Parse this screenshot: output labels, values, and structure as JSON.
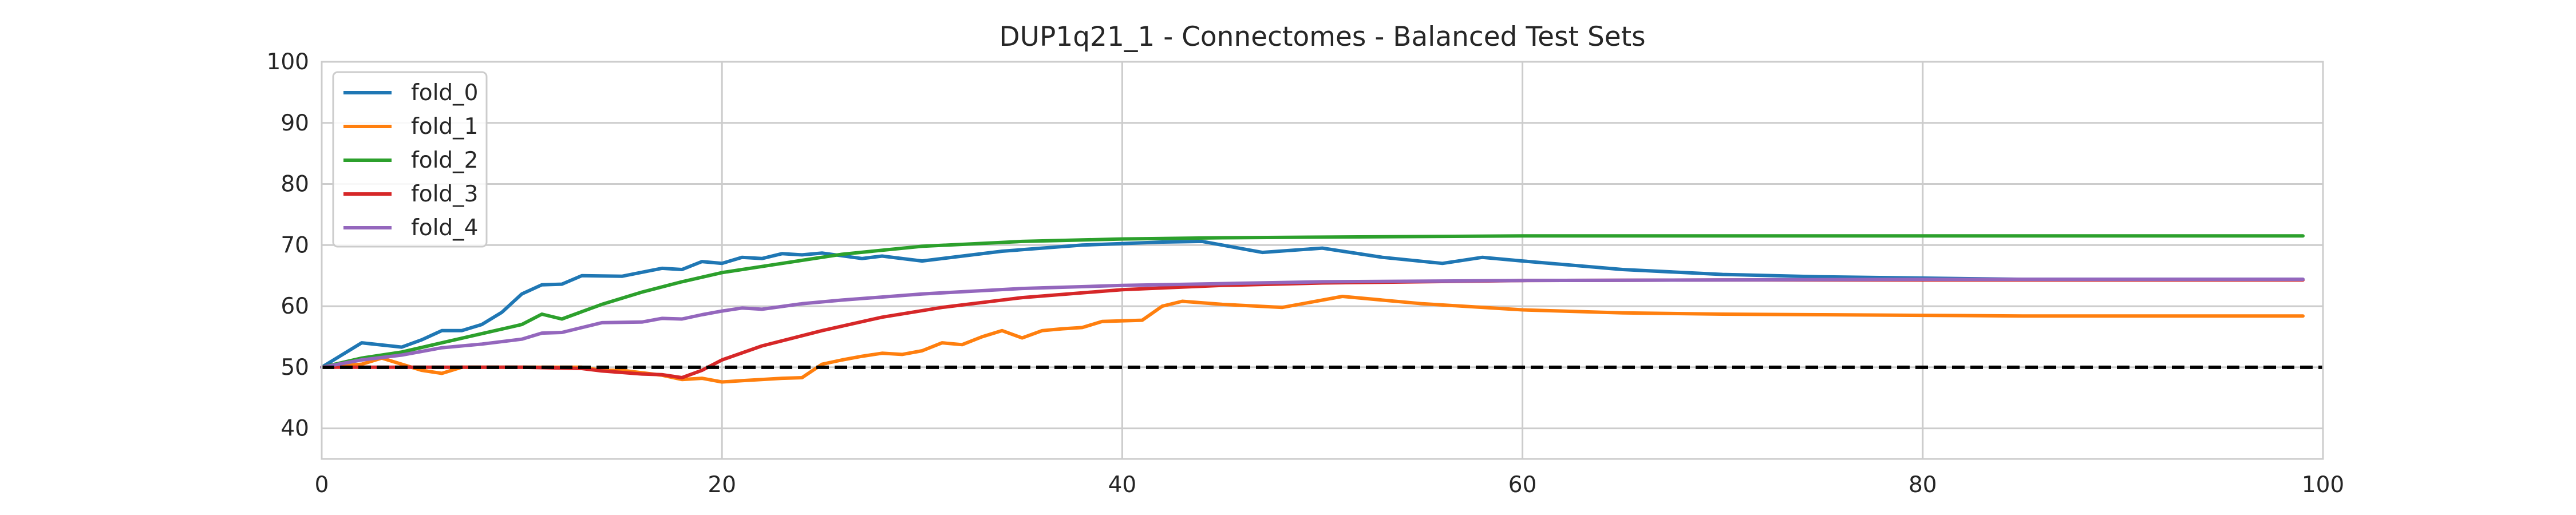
{
  "chart_data": {
    "type": "line",
    "title": "DUP1q21_1 - Connectomes - Balanced Test Sets",
    "xlabel": "",
    "ylabel": "",
    "xlim": [
      0,
      100
    ],
    "ylim": [
      35,
      100
    ],
    "x_ticks": [
      "0",
      "20",
      "40",
      "60",
      "80",
      "100"
    ],
    "y_ticks": [
      "40",
      "50",
      "60",
      "70",
      "80",
      "90",
      "100"
    ],
    "grid": true,
    "legend_position": "upper-left",
    "reference_line": {
      "y": 50,
      "style": "dashed",
      "color": "#000000"
    },
    "series": [
      {
        "name": "fold_0",
        "color": "#1f77b4",
        "points": [
          [
            0,
            50
          ],
          [
            2,
            54
          ],
          [
            4,
            53.3
          ],
          [
            5,
            54.5
          ],
          [
            6,
            56
          ],
          [
            7,
            56
          ],
          [
            8,
            57
          ],
          [
            9,
            59
          ],
          [
            10,
            62
          ],
          [
            11,
            63.5
          ],
          [
            12,
            63.6
          ],
          [
            13,
            65
          ],
          [
            15,
            64.9
          ],
          [
            17,
            66.2
          ],
          [
            18,
            66
          ],
          [
            19,
            67.3
          ],
          [
            20,
            67
          ],
          [
            21,
            68
          ],
          [
            22,
            67.8
          ],
          [
            23,
            68.6
          ],
          [
            24,
            68.4
          ],
          [
            25,
            68.7
          ],
          [
            27,
            67.8
          ],
          [
            28,
            68.2
          ],
          [
            30,
            67.4
          ],
          [
            34,
            69
          ],
          [
            38,
            70
          ],
          [
            42,
            70.5
          ],
          [
            44,
            70.6
          ],
          [
            47,
            68.8
          ],
          [
            50,
            69.5
          ],
          [
            53,
            68
          ],
          [
            56,
            67
          ],
          [
            58,
            68
          ],
          [
            60,
            67.4
          ],
          [
            65,
            66
          ],
          [
            70,
            65.2
          ],
          [
            75,
            64.8
          ],
          [
            80,
            64.6
          ],
          [
            85,
            64.4
          ],
          [
            90,
            64.4
          ],
          [
            95,
            64.4
          ],
          [
            99,
            64.4
          ]
        ]
      },
      {
        "name": "fold_1",
        "color": "#ff7f0e",
        "points": [
          [
            0,
            50
          ],
          [
            2,
            50.5
          ],
          [
            3,
            51.5
          ],
          [
            4,
            50.5
          ],
          [
            5,
            49.5
          ],
          [
            6,
            49
          ],
          [
            7,
            50
          ],
          [
            10,
            50
          ],
          [
            13,
            50
          ],
          [
            14,
            49.5
          ],
          [
            15,
            49.5
          ],
          [
            17,
            48.7
          ],
          [
            18,
            48
          ],
          [
            19,
            48.2
          ],
          [
            20,
            47.6
          ],
          [
            21,
            47.8
          ],
          [
            23,
            48.2
          ],
          [
            24,
            48.3
          ],
          [
            25,
            50.5
          ],
          [
            26,
            51.2
          ],
          [
            27,
            51.8
          ],
          [
            28,
            52.3
          ],
          [
            29,
            52.1
          ],
          [
            30,
            52.7
          ],
          [
            31,
            54
          ],
          [
            32,
            53.7
          ],
          [
            33,
            55
          ],
          [
            34,
            56
          ],
          [
            35,
            54.8
          ],
          [
            36,
            56
          ],
          [
            37,
            56.3
          ],
          [
            38,
            56.5
          ],
          [
            39,
            57.5
          ],
          [
            41,
            57.7
          ],
          [
            42,
            60
          ],
          [
            43,
            60.8
          ],
          [
            45,
            60.3
          ],
          [
            48,
            59.8
          ],
          [
            51,
            61.6
          ],
          [
            55,
            60.4
          ],
          [
            60,
            59.4
          ],
          [
            65,
            58.9
          ],
          [
            70,
            58.7
          ],
          [
            75,
            58.6
          ],
          [
            80,
            58.5
          ],
          [
            85,
            58.4
          ],
          [
            90,
            58.4
          ],
          [
            95,
            58.4
          ],
          [
            99,
            58.4
          ]
        ]
      },
      {
        "name": "fold_2",
        "color": "#2ca02c",
        "points": [
          [
            0,
            50
          ],
          [
            2,
            51.5
          ],
          [
            4,
            52.5
          ],
          [
            6,
            54
          ],
          [
            8,
            55.5
          ],
          [
            10,
            57
          ],
          [
            11,
            58.7
          ],
          [
            12,
            57.9
          ],
          [
            14,
            60.3
          ],
          [
            16,
            62.3
          ],
          [
            18,
            64
          ],
          [
            20,
            65.5
          ],
          [
            23,
            67
          ],
          [
            26,
            68.5
          ],
          [
            30,
            69.8
          ],
          [
            35,
            70.6
          ],
          [
            40,
            71
          ],
          [
            45,
            71.2
          ],
          [
            50,
            71.3
          ],
          [
            60,
            71.5
          ],
          [
            70,
            71.5
          ],
          [
            80,
            71.5
          ],
          [
            90,
            71.5
          ],
          [
            99,
            71.5
          ]
        ]
      },
      {
        "name": "fold_3",
        "color": "#d62728",
        "points": [
          [
            0,
            50
          ],
          [
            5,
            50
          ],
          [
            10,
            50
          ],
          [
            13,
            49.8
          ],
          [
            14,
            49.4
          ],
          [
            16,
            48.9
          ],
          [
            17,
            48.8
          ],
          [
            18,
            48.3
          ],
          [
            19,
            49.5
          ],
          [
            20,
            51.2
          ],
          [
            22,
            53.5
          ],
          [
            25,
            56
          ],
          [
            28,
            58.2
          ],
          [
            31,
            59.8
          ],
          [
            35,
            61.4
          ],
          [
            40,
            62.7
          ],
          [
            45,
            63.4
          ],
          [
            50,
            63.8
          ],
          [
            55,
            64
          ],
          [
            60,
            64.2
          ],
          [
            70,
            64.3
          ],
          [
            80,
            64.3
          ],
          [
            90,
            64.3
          ],
          [
            99,
            64.3
          ]
        ]
      },
      {
        "name": "fold_4",
        "color": "#9467bd",
        "points": [
          [
            0,
            50
          ],
          [
            2,
            51.2
          ],
          [
            4,
            52
          ],
          [
            6,
            53.2
          ],
          [
            8,
            53.8
          ],
          [
            10,
            54.6
          ],
          [
            11,
            55.6
          ],
          [
            12,
            55.7
          ],
          [
            14,
            57.3
          ],
          [
            16,
            57.4
          ],
          [
            17,
            58
          ],
          [
            18,
            57.9
          ],
          [
            19,
            58.6
          ],
          [
            20,
            59.2
          ],
          [
            21,
            59.7
          ],
          [
            22,
            59.5
          ],
          [
            24,
            60.4
          ],
          [
            26,
            61
          ],
          [
            30,
            62
          ],
          [
            35,
            62.9
          ],
          [
            40,
            63.4
          ],
          [
            45,
            63.7
          ],
          [
            50,
            64
          ],
          [
            60,
            64.2
          ],
          [
            70,
            64.3
          ],
          [
            80,
            64.4
          ],
          [
            90,
            64.4
          ],
          [
            99,
            64.4
          ]
        ]
      }
    ]
  }
}
